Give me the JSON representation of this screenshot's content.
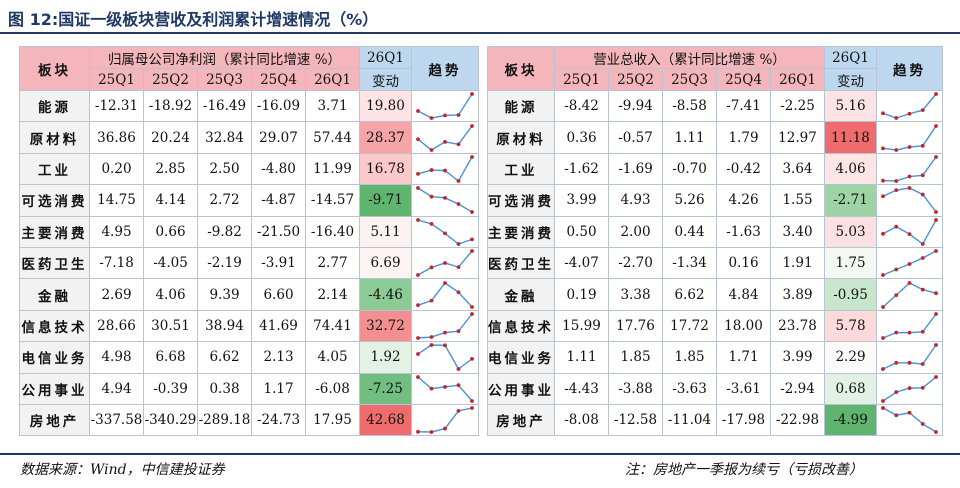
{
  "title": "图 12:国证一级板块营收及利润累计增速情况（%）",
  "headers": {
    "sector": "板块",
    "profit_group": "归属母公司净利润（累计同比增速 %）",
    "revenue_group": "营业总收入（累计同比增速 %）",
    "quarters": [
      "25Q1",
      "25Q2",
      "25Q3",
      "25Q4",
      "26Q1"
    ],
    "change_top": "26Q1",
    "change_bottom": "变动",
    "trend": "趋势"
  },
  "rows": [
    {
      "name": "能源",
      "profit": [
        "-12.31",
        "-18.92",
        "-16.49",
        "-16.09",
        "3.71"
      ],
      "profit_change": "19.80",
      "profit_color": "#fde3e4",
      "revenue": [
        "-8.42",
        "-9.94",
        "-8.58",
        "-7.41",
        "-2.25"
      ],
      "revenue_change": "5.16",
      "revenue_color": "#fde3e4"
    },
    {
      "name": "原材料",
      "profit": [
        "36.86",
        "20.24",
        "32.84",
        "29.07",
        "57.44"
      ],
      "profit_change": "28.37",
      "profit_color": "#f6a4a6",
      "revenue": [
        "0.36",
        "-0.57",
        "1.11",
        "1.79",
        "12.97"
      ],
      "revenue_change": "11.18",
      "revenue_color": "#ee6c6e"
    },
    {
      "name": "工业",
      "profit": [
        "0.20",
        "2.85",
        "2.50",
        "-4.80",
        "11.99"
      ],
      "profit_change": "16.78",
      "profit_color": "#fbc9cb",
      "revenue": [
        "-1.62",
        "-1.69",
        "-0.70",
        "-0.42",
        "3.64"
      ],
      "revenue_change": "4.06",
      "revenue_color": "#fde5e6"
    },
    {
      "name": "可选消费",
      "profit": [
        "14.75",
        "4.14",
        "2.72",
        "-4.87",
        "-14.57"
      ],
      "profit_change": "-9.71",
      "profit_color": "#5fb56e",
      "revenue": [
        "3.99",
        "4.93",
        "5.26",
        "4.26",
        "1.55"
      ],
      "revenue_change": "-2.71",
      "revenue_color": "#9ed3a6"
    },
    {
      "name": "主要消费",
      "profit": [
        "4.95",
        "0.66",
        "-9.82",
        "-21.50",
        "-16.40"
      ],
      "profit_change": "5.11",
      "profit_color": "#fdf2f2",
      "revenue": [
        "0.50",
        "2.00",
        "0.44",
        "-1.63",
        "3.40"
      ],
      "revenue_change": "5.03",
      "revenue_color": "#fde1e2"
    },
    {
      "name": "医药卫生",
      "profit": [
        "-7.18",
        "-4.05",
        "-2.19",
        "-3.91",
        "2.77"
      ],
      "profit_change": "6.69",
      "profit_color": "#fdf4f4",
      "revenue": [
        "-4.07",
        "-2.70",
        "-1.34",
        "0.16",
        "1.91"
      ],
      "revenue_change": "1.75",
      "revenue_color": "#f3f8f3"
    },
    {
      "name": "金融",
      "profit": [
        "2.69",
        "4.06",
        "9.39",
        "6.60",
        "2.14"
      ],
      "profit_change": "-4.46",
      "profit_color": "#8ccb96",
      "revenue": [
        "0.19",
        "3.38",
        "6.62",
        "4.84",
        "3.89"
      ],
      "revenue_change": "-0.95",
      "revenue_color": "#c8e6cc"
    },
    {
      "name": "信息技术",
      "profit": [
        "28.66",
        "30.51",
        "38.94",
        "41.69",
        "74.41"
      ],
      "profit_change": "32.72",
      "profit_color": "#f38e91",
      "revenue": [
        "15.99",
        "17.76",
        "17.72",
        "18.00",
        "23.78"
      ],
      "revenue_change": "5.78",
      "revenue_color": "#fcd9da"
    },
    {
      "name": "电信业务",
      "profit": [
        "4.98",
        "6.68",
        "6.62",
        "2.13",
        "4.05"
      ],
      "profit_change": "1.92",
      "profit_color": "#e4f2e6",
      "revenue": [
        "1.11",
        "1.85",
        "1.85",
        "1.71",
        "3.99"
      ],
      "revenue_change": "2.29",
      "revenue_color": "#fafafa"
    },
    {
      "name": "公用事业",
      "profit": [
        "4.94",
        "-0.39",
        "0.38",
        "1.17",
        "-6.08"
      ],
      "profit_change": "-7.25",
      "profit_color": "#72be80",
      "revenue": [
        "-4.43",
        "-3.88",
        "-3.63",
        "-3.61",
        "-2.94"
      ],
      "revenue_change": "0.68",
      "revenue_color": "#e2f1e4"
    },
    {
      "name": "房地产",
      "profit": [
        "-337.58",
        "-340.29",
        "-289.18",
        "-24.73",
        "17.95"
      ],
      "profit_change": "42.68",
      "profit_color": "#ee6c6e",
      "revenue": [
        "-8.08",
        "-12.58",
        "-11.04",
        "-17.98",
        "-22.98"
      ],
      "revenue_change": "-4.99",
      "revenue_color": "#5fb56e"
    }
  ],
  "footer": {
    "source": "数据来源：Wind，中信建投证券",
    "note": "注：房地产一季报为续亏（亏损改善）"
  },
  "colors": {
    "header_pink": "#f4b6ba",
    "header_blue": "#bdd7ee",
    "title_navy": "#1f3864",
    "spark_line": "#4a90d9",
    "spark_dot": "#c0262d"
  }
}
